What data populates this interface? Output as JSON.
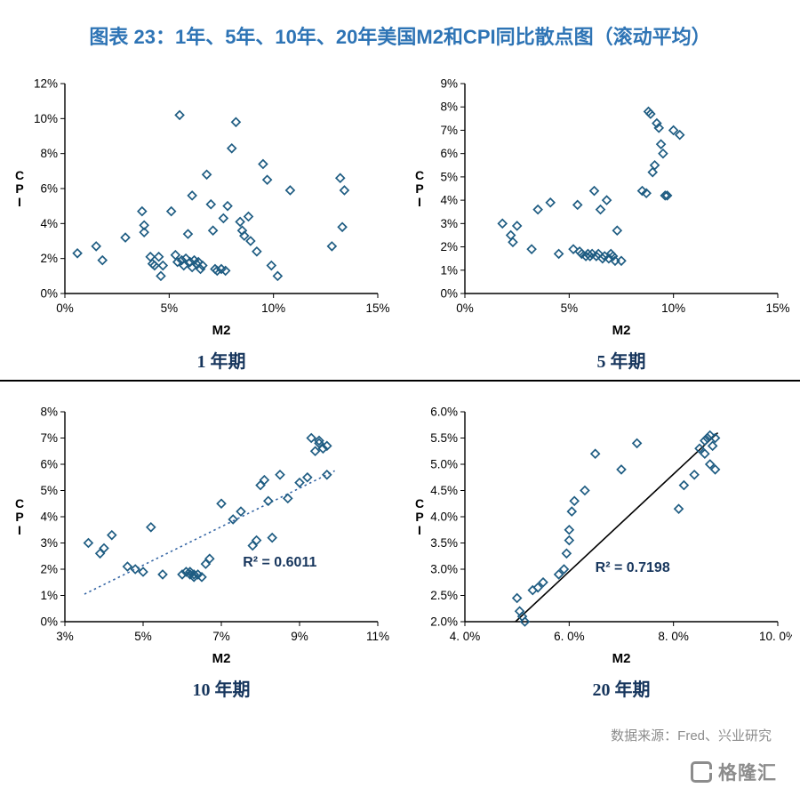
{
  "header": {
    "title": "图表 23：1年、5年、10年、20年美国M2和CPI同比散点图（滚动平均）"
  },
  "footer": {
    "source": "数据来源：Fred、兴业研究",
    "logo_text": "格隆汇"
  },
  "colors": {
    "title": "#2e74b5",
    "caption": "#17365d",
    "marker": "#1e5c82",
    "axis": "#000000",
    "source": "#8c8c8c",
    "trend_dotted": "#3465a4",
    "trend_solid": "#000000"
  },
  "chart_data": [
    {
      "type": "scatter",
      "caption": "1 年期",
      "xlabel": "M2",
      "ylabel": "CPI",
      "xlim": [
        0,
        15
      ],
      "ylim": [
        0,
        12
      ],
      "xticks": [
        0,
        5,
        10,
        15
      ],
      "xtick_labels": [
        "0%",
        "5%",
        "10%",
        "15%"
      ],
      "yticks": [
        0,
        2,
        4,
        6,
        8,
        10,
        12
      ],
      "ytick_labels": [
        "0%",
        "2%",
        "4%",
        "6%",
        "8%",
        "10%",
        "12%"
      ],
      "points": [
        [
          0.6,
          2.3
        ],
        [
          1.5,
          2.7
        ],
        [
          1.8,
          1.9
        ],
        [
          2.9,
          3.2
        ],
        [
          3.7,
          4.7
        ],
        [
          3.8,
          3.9
        ],
        [
          3.8,
          3.5
        ],
        [
          4.1,
          2.1
        ],
        [
          4.2,
          1.7
        ],
        [
          4.3,
          1.6
        ],
        [
          4.5,
          2.1
        ],
        [
          4.6,
          1.0
        ],
        [
          4.7,
          1.6
        ],
        [
          5.1,
          4.7
        ],
        [
          5.3,
          2.2
        ],
        [
          5.4,
          1.8
        ],
        [
          5.5,
          10.2
        ],
        [
          5.6,
          1.9
        ],
        [
          5.7,
          1.6
        ],
        [
          5.8,
          2.0
        ],
        [
          5.9,
          3.4
        ],
        [
          6.0,
          1.8
        ],
        [
          6.1,
          5.6
        ],
        [
          6.1,
          1.5
        ],
        [
          6.2,
          1.9
        ],
        [
          6.3,
          1.7
        ],
        [
          6.4,
          1.8
        ],
        [
          6.5,
          1.4
        ],
        [
          6.6,
          1.6
        ],
        [
          6.8,
          6.8
        ],
        [
          7.0,
          5.1
        ],
        [
          7.1,
          3.6
        ],
        [
          7.2,
          1.4
        ],
        [
          7.3,
          1.3
        ],
        [
          7.5,
          1.4
        ],
        [
          7.6,
          4.3
        ],
        [
          7.7,
          1.3
        ],
        [
          7.8,
          5.0
        ],
        [
          8.0,
          8.3
        ],
        [
          8.2,
          9.8
        ],
        [
          8.4,
          4.1
        ],
        [
          8.5,
          3.6
        ],
        [
          8.6,
          3.3
        ],
        [
          8.8,
          4.4
        ],
        [
          8.9,
          3.0
        ],
        [
          9.2,
          2.4
        ],
        [
          9.5,
          7.4
        ],
        [
          9.7,
          6.5
        ],
        [
          9.9,
          1.6
        ],
        [
          10.2,
          1.0
        ],
        [
          10.8,
          5.9
        ],
        [
          12.8,
          2.7
        ],
        [
          13.2,
          6.6
        ],
        [
          13.3,
          3.8
        ],
        [
          13.4,
          5.9
        ]
      ]
    },
    {
      "type": "scatter",
      "caption": "5 年期",
      "xlabel": "M2",
      "ylabel": "CPI",
      "xlim": [
        0,
        15
      ],
      "ylim": [
        0,
        9
      ],
      "xticks": [
        0,
        5,
        10,
        15
      ],
      "xtick_labels": [
        "0%",
        "5%",
        "10%",
        "15%"
      ],
      "yticks": [
        0,
        1,
        2,
        3,
        4,
        5,
        6,
        7,
        8,
        9
      ],
      "ytick_labels": [
        "0%",
        "1%",
        "2%",
        "3%",
        "4%",
        "5%",
        "6%",
        "7%",
        "8%",
        "9%"
      ],
      "points": [
        [
          1.8,
          3.0
        ],
        [
          2.2,
          2.5
        ],
        [
          2.3,
          2.2
        ],
        [
          2.5,
          2.9
        ],
        [
          3.2,
          1.9
        ],
        [
          3.5,
          3.6
        ],
        [
          4.1,
          3.9
        ],
        [
          4.5,
          1.7
        ],
        [
          5.2,
          1.9
        ],
        [
          5.4,
          3.8
        ],
        [
          5.5,
          1.8
        ],
        [
          5.6,
          1.7
        ],
        [
          5.8,
          1.6
        ],
        [
          5.9,
          1.7
        ],
        [
          6.0,
          1.6
        ],
        [
          6.1,
          1.7
        ],
        [
          6.2,
          4.4
        ],
        [
          6.3,
          1.6
        ],
        [
          6.4,
          1.7
        ],
        [
          6.5,
          3.6
        ],
        [
          6.6,
          1.5
        ],
        [
          6.7,
          1.6
        ],
        [
          6.8,
          4.0
        ],
        [
          6.9,
          1.5
        ],
        [
          7.0,
          1.7
        ],
        [
          7.1,
          1.6
        ],
        [
          7.2,
          1.4
        ],
        [
          7.3,
          2.7
        ],
        [
          7.5,
          1.4
        ],
        [
          8.5,
          4.4
        ],
        [
          8.7,
          4.3
        ],
        [
          8.8,
          7.8
        ],
        [
          8.9,
          7.7
        ],
        [
          9.0,
          5.2
        ],
        [
          9.1,
          5.5
        ],
        [
          9.2,
          7.3
        ],
        [
          9.3,
          7.1
        ],
        [
          9.4,
          6.4
        ],
        [
          9.5,
          6.0
        ],
        [
          9.6,
          4.2
        ],
        [
          9.7,
          4.2
        ],
        [
          10.0,
          7.0
        ],
        [
          10.3,
          6.8
        ]
      ]
    },
    {
      "type": "scatter",
      "caption": "10 年期",
      "xlabel": "M2",
      "ylabel": "CPI",
      "xlim": [
        3,
        11
      ],
      "ylim": [
        0,
        8
      ],
      "xticks": [
        3,
        5,
        7,
        9,
        11
      ],
      "xtick_labels": [
        "3%",
        "5%",
        "7%",
        "9%",
        "11%"
      ],
      "yticks": [
        0,
        1,
        2,
        3,
        4,
        5,
        6,
        7,
        8
      ],
      "ytick_labels": [
        "0%",
        "1%",
        "2%",
        "3%",
        "4%",
        "5%",
        "6%",
        "7%",
        "8%"
      ],
      "trendline": {
        "x1": 3.5,
        "y1": 1.05,
        "x2": 9.9,
        "y2": 5.75,
        "style": "dotted"
      },
      "r2": {
        "label": "R² = 0.6011",
        "x": 7.55,
        "y": 2.1
      },
      "points": [
        [
          3.6,
          3.0
        ],
        [
          3.9,
          2.6
        ],
        [
          4.0,
          2.8
        ],
        [
          4.2,
          3.3
        ],
        [
          4.6,
          2.1
        ],
        [
          4.8,
          2.0
        ],
        [
          5.0,
          1.9
        ],
        [
          5.2,
          3.6
        ],
        [
          5.5,
          1.8
        ],
        [
          6.0,
          1.8
        ],
        [
          6.1,
          1.9
        ],
        [
          6.2,
          1.8
        ],
        [
          6.2,
          1.9
        ],
        [
          6.3,
          1.8
        ],
        [
          6.3,
          1.7
        ],
        [
          6.4,
          1.8
        ],
        [
          6.5,
          1.7
        ],
        [
          6.6,
          2.2
        ],
        [
          6.7,
          2.4
        ],
        [
          7.0,
          4.5
        ],
        [
          7.3,
          3.9
        ],
        [
          7.5,
          4.2
        ],
        [
          7.8,
          2.9
        ],
        [
          7.9,
          3.1
        ],
        [
          8.0,
          5.2
        ],
        [
          8.1,
          5.4
        ],
        [
          8.2,
          4.6
        ],
        [
          8.3,
          3.2
        ],
        [
          8.5,
          5.6
        ],
        [
          8.7,
          4.7
        ],
        [
          9.0,
          5.3
        ],
        [
          9.2,
          5.5
        ],
        [
          9.3,
          7.0
        ],
        [
          9.4,
          6.5
        ],
        [
          9.5,
          6.9
        ],
        [
          9.5,
          6.8
        ],
        [
          9.6,
          6.6
        ],
        [
          9.7,
          6.7
        ],
        [
          9.7,
          5.6
        ]
      ]
    },
    {
      "type": "scatter",
      "caption": "20 年期",
      "xlabel": "M2",
      "ylabel": "CPI",
      "xlim": [
        4,
        10
      ],
      "ylim": [
        2,
        6
      ],
      "xticks": [
        4,
        6,
        8,
        10
      ],
      "xtick_labels": [
        "4. 0%",
        "6. 0%",
        "8. 0%",
        "10. 0%"
      ],
      "yticks": [
        2,
        2.5,
        3,
        3.5,
        4,
        4.5,
        5,
        5.5,
        6
      ],
      "ytick_labels": [
        "2.0%",
        "2.5%",
        "3.0%",
        "3.5%",
        "4.0%",
        "4.5%",
        "5.0%",
        "5.5%",
        "6.0%"
      ],
      "trendline": {
        "x1": 4.97,
        "y1": 2.0,
        "x2": 8.85,
        "y2": 5.6,
        "style": "solid"
      },
      "r2": {
        "label": "R² = 0.7198",
        "x": 6.5,
        "y": 2.95
      },
      "points": [
        [
          5.0,
          2.45
        ],
        [
          5.05,
          2.2
        ],
        [
          5.1,
          2.1
        ],
        [
          5.15,
          2.0
        ],
        [
          5.3,
          2.6
        ],
        [
          5.4,
          2.65
        ],
        [
          5.5,
          2.75
        ],
        [
          5.8,
          2.9
        ],
        [
          5.9,
          3.0
        ],
        [
          5.95,
          3.3
        ],
        [
          6.0,
          3.55
        ],
        [
          6.0,
          3.75
        ],
        [
          6.05,
          4.1
        ],
        [
          6.1,
          4.3
        ],
        [
          6.3,
          4.5
        ],
        [
          6.5,
          5.2
        ],
        [
          7.0,
          4.9
        ],
        [
          7.3,
          5.4
        ],
        [
          8.1,
          4.15
        ],
        [
          8.2,
          4.6
        ],
        [
          8.4,
          4.8
        ],
        [
          8.5,
          5.3
        ],
        [
          8.6,
          5.45
        ],
        [
          8.6,
          5.2
        ],
        [
          8.65,
          5.5
        ],
        [
          8.7,
          5.55
        ],
        [
          8.7,
          5.0
        ],
        [
          8.75,
          5.35
        ],
        [
          8.8,
          5.5
        ],
        [
          8.8,
          4.9
        ]
      ]
    }
  ]
}
